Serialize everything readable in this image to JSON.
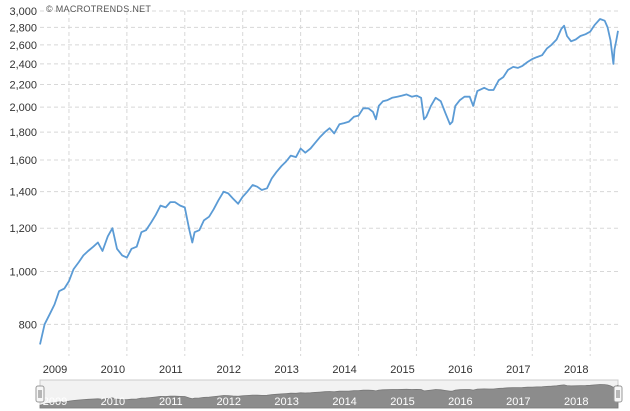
{
  "credit": "© MACROTRENDS.NET",
  "colors": {
    "line": "#5b9bd5",
    "grid": "#d8d8d8",
    "navigator_fill": "#8c8c8c",
    "navigator_band": "#9a9a9a"
  },
  "navigator": {
    "handle_left_icon": "grip-handle-icon",
    "handle_right_icon": "grip-handle-icon",
    "labels": [
      "2009",
      "2010",
      "2011",
      "2012",
      "2013",
      "2014",
      "2015",
      "2016",
      "2017",
      "2018"
    ]
  },
  "chart_data": {
    "type": "line",
    "y_scale": "log",
    "ylim": [
      700,
      3000
    ],
    "xlim": [
      2009.0,
      2018.98
    ],
    "yticks": [
      800,
      1000,
      1200,
      1400,
      1600,
      1800,
      2000,
      2200,
      2400,
      2600,
      2800,
      3000
    ],
    "ytick_labels": [
      "800",
      "1,000",
      "1,200",
      "1,400",
      "1,600",
      "1,800",
      "2,000",
      "2,200",
      "2,400",
      "2,600",
      "2,800",
      "3,000"
    ],
    "xticks": [
      2009,
      2010,
      2011,
      2012,
      2013,
      2014,
      2015,
      2016,
      2017,
      2018
    ],
    "xtick_labels": [
      "2009",
      "2010",
      "2011",
      "2012",
      "2013",
      "2014",
      "2015",
      "2016",
      "2017",
      "2018"
    ],
    "grid": true,
    "x": [
      2009.0,
      2009.08,
      2009.18,
      2009.25,
      2009.33,
      2009.42,
      2009.5,
      2009.58,
      2009.67,
      2009.75,
      2009.83,
      2009.92,
      2010.0,
      2010.08,
      2010.17,
      2010.25,
      2010.33,
      2010.42,
      2010.5,
      2010.58,
      2010.67,
      2010.75,
      2010.83,
      2010.92,
      2011.0,
      2011.08,
      2011.17,
      2011.25,
      2011.33,
      2011.42,
      2011.5,
      2011.58,
      2011.63,
      2011.67,
      2011.75,
      2011.83,
      2011.92,
      2012.0,
      2012.08,
      2012.17,
      2012.25,
      2012.33,
      2012.42,
      2012.5,
      2012.58,
      2012.67,
      2012.75,
      2012.83,
      2012.92,
      2013.0,
      2013.08,
      2013.17,
      2013.25,
      2013.33,
      2013.42,
      2013.5,
      2013.58,
      2013.67,
      2013.75,
      2013.83,
      2013.92,
      2014.0,
      2014.08,
      2014.17,
      2014.25,
      2014.33,
      2014.42,
      2014.5,
      2014.58,
      2014.67,
      2014.75,
      2014.8,
      2014.85,
      2014.92,
      2015.0,
      2015.08,
      2015.17,
      2015.25,
      2015.33,
      2015.42,
      2015.5,
      2015.58,
      2015.63,
      2015.67,
      2015.75,
      2015.83,
      2015.92,
      2016.0,
      2016.08,
      2016.12,
      2016.17,
      2016.25,
      2016.33,
      2016.42,
      2016.48,
      2016.55,
      2016.67,
      2016.75,
      2016.83,
      2016.92,
      2017.0,
      2017.08,
      2017.17,
      2017.25,
      2017.33,
      2017.42,
      2017.5,
      2017.58,
      2017.67,
      2017.75,
      2017.83,
      2017.92,
      2018.0,
      2018.05,
      2018.1,
      2018.17,
      2018.25,
      2018.33,
      2018.42,
      2018.5,
      2018.58,
      2018.67,
      2018.75,
      2018.8,
      2018.85,
      2018.9,
      2018.92,
      2018.95,
      2018.98
    ],
    "y": [
      735,
      800,
      840,
      870,
      920,
      930,
      960,
      1010,
      1040,
      1070,
      1090,
      1110,
      1130,
      1090,
      1160,
      1200,
      1100,
      1070,
      1060,
      1100,
      1110,
      1180,
      1190,
      1230,
      1270,
      1320,
      1310,
      1340,
      1340,
      1320,
      1310,
      1190,
      1130,
      1180,
      1190,
      1240,
      1260,
      1300,
      1350,
      1400,
      1390,
      1360,
      1330,
      1370,
      1400,
      1440,
      1430,
      1410,
      1420,
      1480,
      1520,
      1560,
      1590,
      1630,
      1620,
      1680,
      1650,
      1680,
      1720,
      1760,
      1800,
      1830,
      1790,
      1860,
      1870,
      1880,
      1920,
      1930,
      1990,
      1990,
      1960,
      1900,
      2010,
      2050,
      2060,
      2080,
      2090,
      2100,
      2110,
      2090,
      2100,
      2080,
      1900,
      1920,
      2010,
      2080,
      2050,
      1950,
      1860,
      1880,
      2010,
      2060,
      2090,
      2090,
      2010,
      2140,
      2170,
      2150,
      2150,
      2240,
      2270,
      2340,
      2370,
      2360,
      2380,
      2420,
      2450,
      2470,
      2490,
      2560,
      2600,
      2660,
      2780,
      2820,
      2700,
      2640,
      2660,
      2700,
      2720,
      2750,
      2830,
      2900,
      2880,
      2800,
      2650,
      2400,
      2550,
      2650,
      2760
    ]
  }
}
